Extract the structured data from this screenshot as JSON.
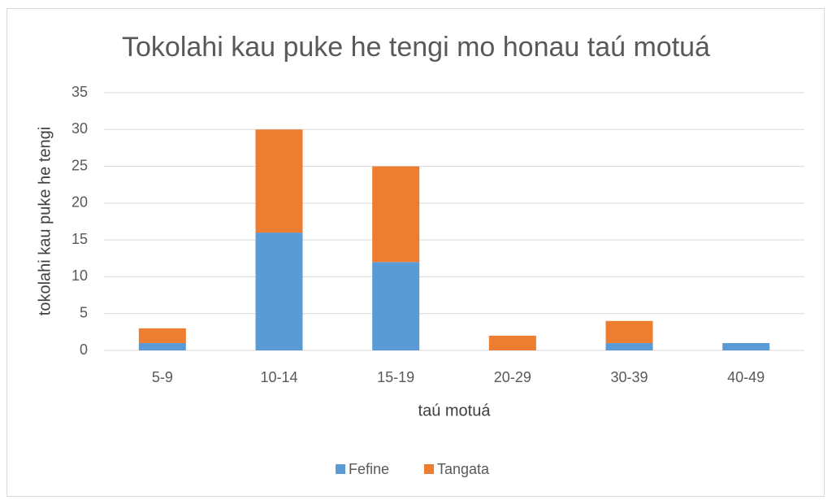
{
  "chart_data": {
    "type": "stacked-bar",
    "title": "Tokolahi kau puke he tengi mo honau taú motuá",
    "x_label": "taú motuá",
    "y_label": "tokolahi kau puke he tengi",
    "categories": [
      "5-9",
      "10-14",
      "15-19",
      "20-29",
      "30-39",
      "40-49"
    ],
    "series": [
      {
        "name": "Fefine",
        "color": "#5b9bd5",
        "values": [
          1,
          16,
          12,
          0,
          1,
          1
        ]
      },
      {
        "name": "Tangata",
        "color": "#ed7d31",
        "values": [
          2,
          14,
          13,
          2,
          3,
          0
        ]
      }
    ],
    "ylim": [
      0,
      35
    ],
    "yticks": [
      0,
      5,
      10,
      15,
      20,
      25,
      30,
      35
    ],
    "grid": true,
    "legend": "bottom"
  }
}
